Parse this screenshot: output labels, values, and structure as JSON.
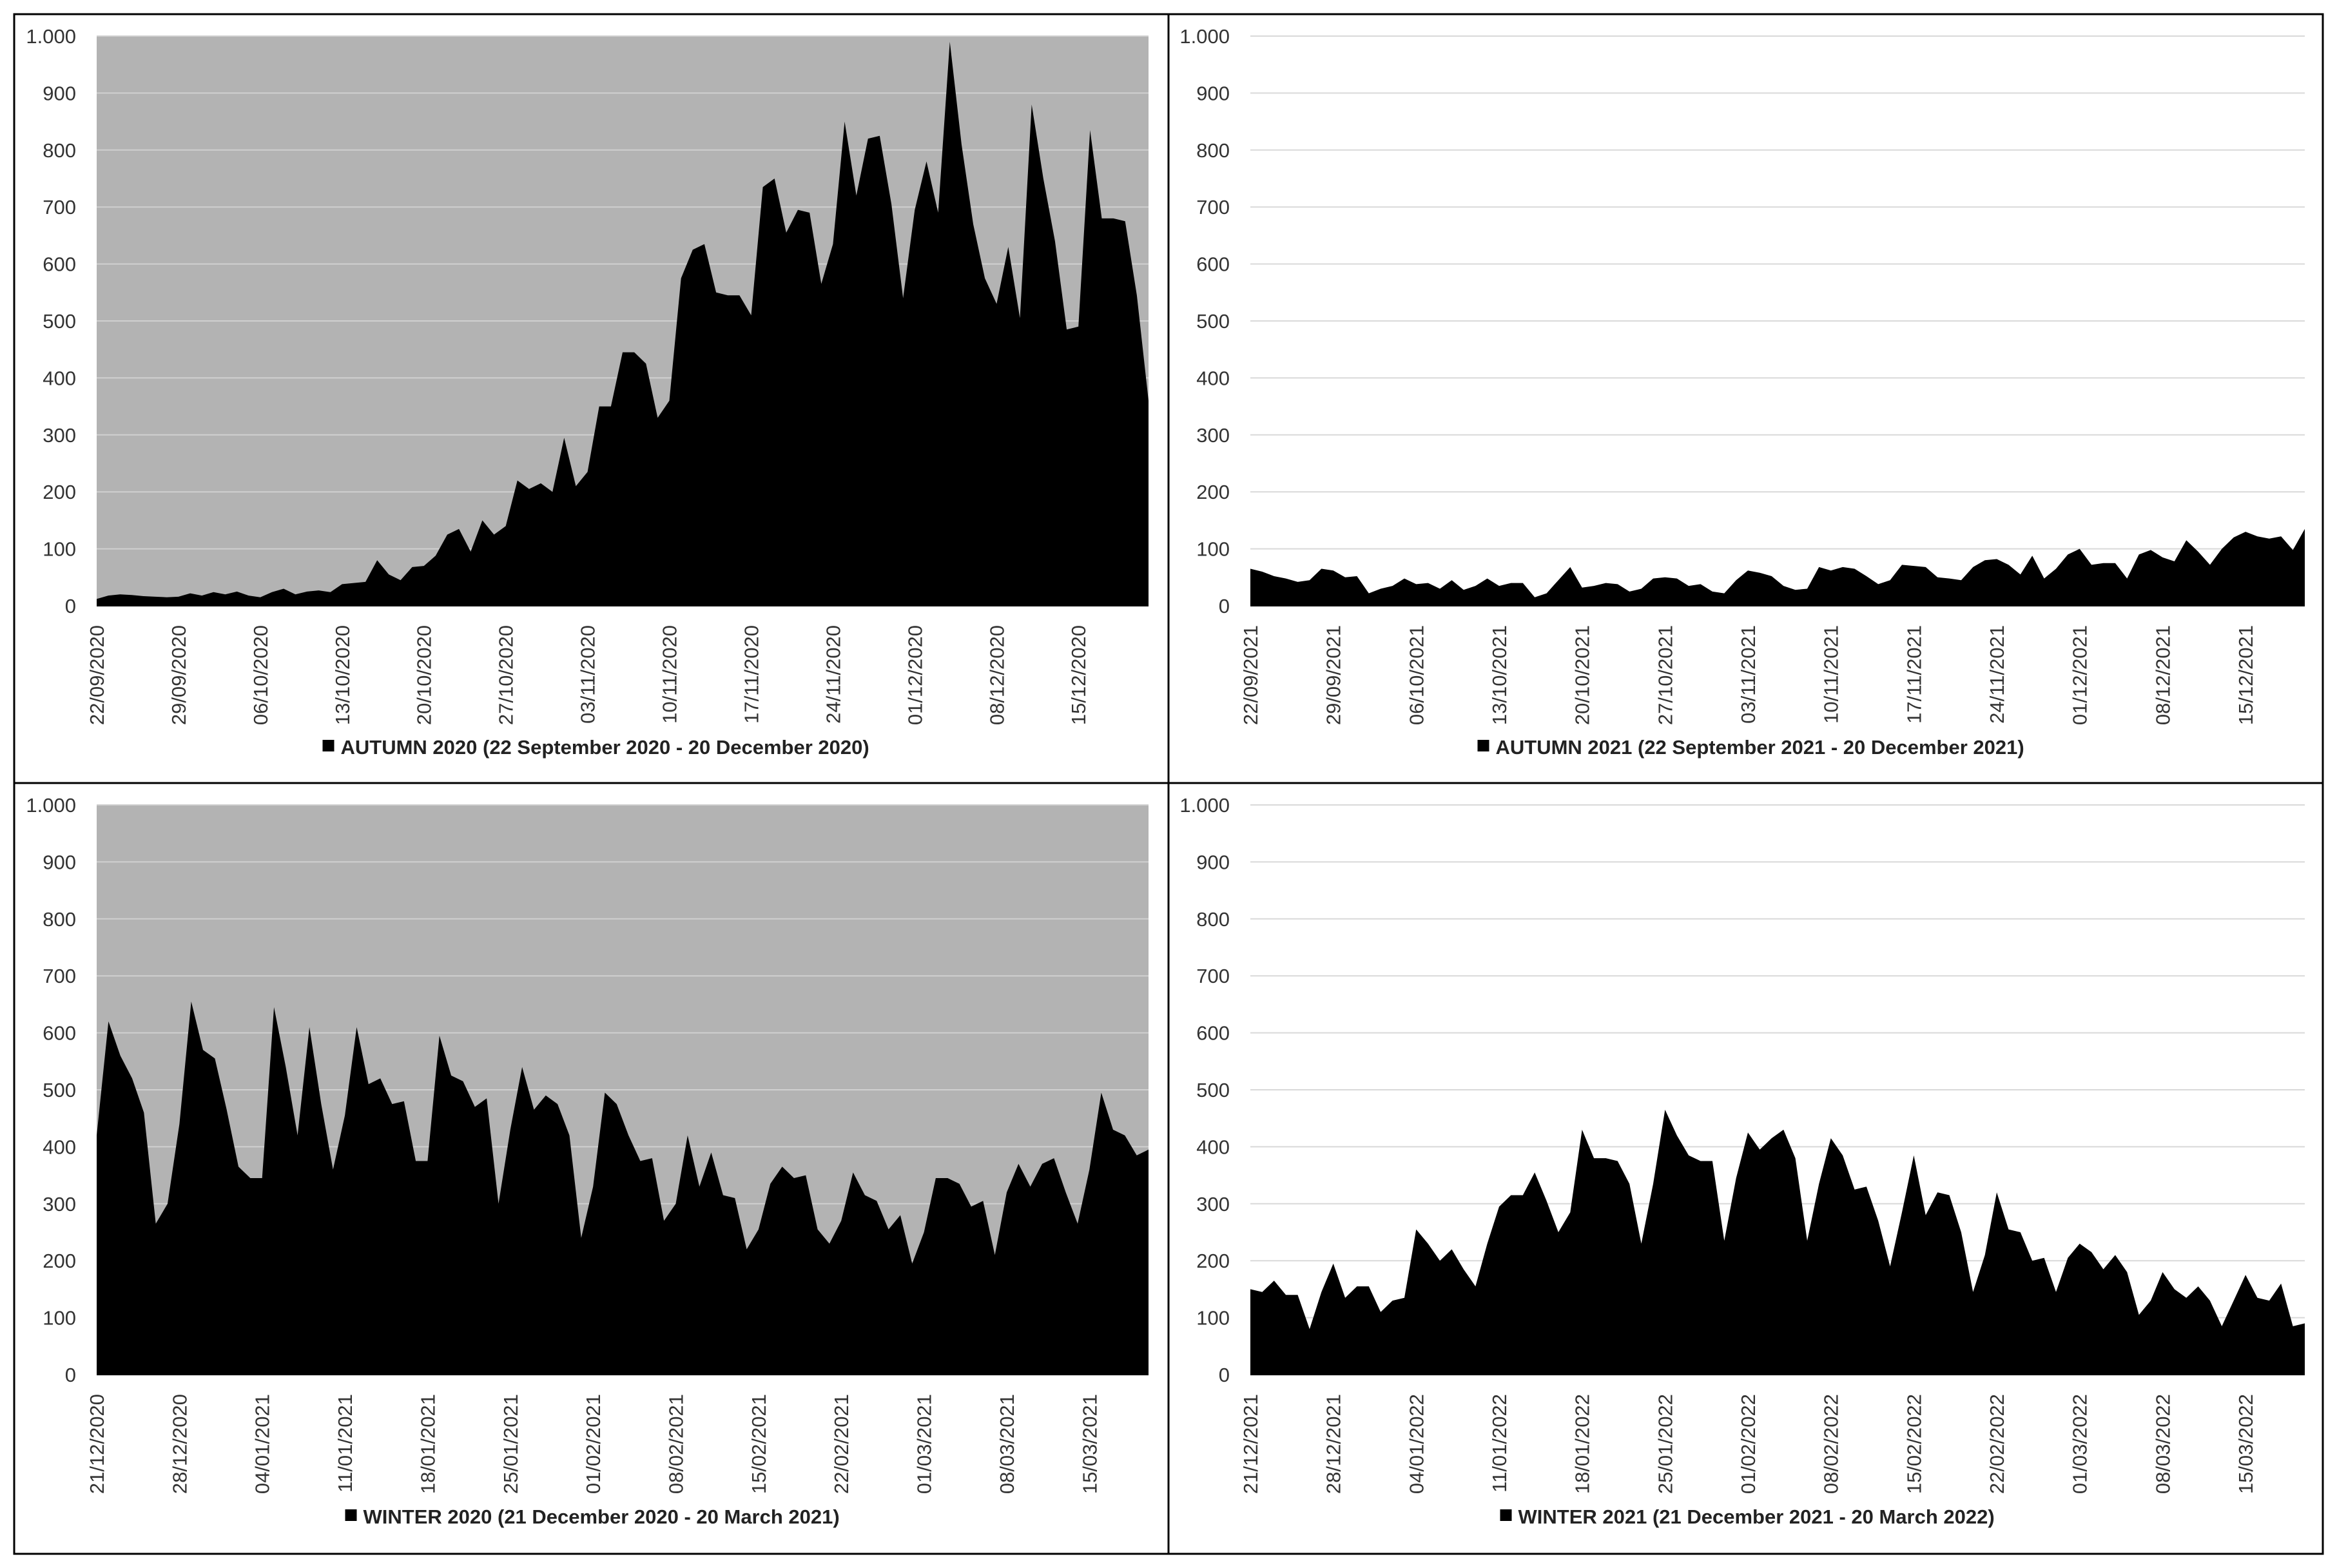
{
  "chart_data": [
    {
      "type": "area",
      "panel": "top-left",
      "series": [
        {
          "name": "AUTUMN 2020 (22 September 2020 - 20 December 2020)",
          "color": "#000000"
        }
      ],
      "legend_label": "AUTUMN 2020 (22 September 2020 - 20 December 2020)",
      "background": "#b3b3b3",
      "gridline_color": "#d0d0d0",
      "ylim": [
        0,
        1000
      ],
      "yticks": [
        0,
        100,
        200,
        300,
        400,
        500,
        600,
        700,
        800,
        900,
        1000
      ],
      "ytick_labels": [
        "0",
        "100",
        "200",
        "300",
        "400",
        "500",
        "600",
        "700",
        "800",
        "900",
        "1.000"
      ],
      "xtick_labels": [
        "22/09/2020",
        "29/09/2020",
        "06/10/2020",
        "13/10/2020",
        "20/10/2020",
        "27/10/2020",
        "03/11/2020",
        "10/11/2020",
        "17/11/2020",
        "24/11/2020",
        "01/12/2020",
        "08/12/2020",
        "15/12/2020"
      ],
      "legend_position": "bottom",
      "values": [
        12,
        18,
        20,
        19,
        17,
        16,
        15,
        16,
        22,
        18,
        24,
        20,
        25,
        18,
        15,
        24,
        30,
        20,
        25,
        27,
        24,
        38,
        40,
        42,
        80,
        55,
        45,
        68,
        70,
        88,
        125,
        135,
        95,
        150,
        125,
        140,
        220,
        205,
        215,
        200,
        295,
        210,
        235,
        350,
        350,
        445,
        445,
        425,
        330,
        360,
        575,
        625,
        635,
        550,
        545,
        545,
        510,
        735,
        750,
        655,
        695,
        690,
        565,
        635,
        850,
        720,
        820,
        825,
        705,
        540,
        695,
        780,
        690,
        990,
        810,
        670,
        575,
        530,
        630,
        505,
        880,
        750,
        640,
        485,
        490,
        835,
        680,
        680,
        675,
        545,
        360
      ]
    },
    {
      "type": "area",
      "panel": "top-right",
      "series": [
        {
          "name": "AUTUMN 2021 (22 September 2021 - 20 December 2021)",
          "color": "#000000"
        }
      ],
      "legend_label": "AUTUMN 2021 (22 September 2021 - 20 December 2021)",
      "background": "#ffffff",
      "gridline_color": "#d9d9d9",
      "ylim": [
        0,
        1000
      ],
      "yticks": [
        0,
        100,
        200,
        300,
        400,
        500,
        600,
        700,
        800,
        900,
        1000
      ],
      "ytick_labels": [
        "0",
        "100",
        "200",
        "300",
        "400",
        "500",
        "600",
        "700",
        "800",
        "900",
        "1.000"
      ],
      "xtick_labels": [
        "22/09/2021",
        "29/09/2021",
        "06/10/2021",
        "13/10/2021",
        "20/10/2021",
        "27/10/2021",
        "03/11/2021",
        "10/11/2021",
        "17/11/2021",
        "24/11/2021",
        "01/12/2021",
        "08/12/2021",
        "15/12/2021"
      ],
      "legend_position": "bottom",
      "values": [
        65,
        60,
        52,
        48,
        42,
        45,
        65,
        62,
        50,
        52,
        22,
        30,
        35,
        48,
        38,
        40,
        30,
        45,
        28,
        35,
        48,
        35,
        40,
        40,
        15,
        22,
        45,
        68,
        32,
        35,
        40,
        38,
        25,
        30,
        48,
        50,
        48,
        35,
        38,
        25,
        22,
        45,
        62,
        58,
        52,
        35,
        28,
        30,
        68,
        62,
        68,
        65,
        52,
        38,
        45,
        72,
        70,
        68,
        50,
        48,
        45,
        68,
        80,
        82,
        72,
        55,
        88,
        48,
        65,
        90,
        100,
        72,
        75,
        75,
        48,
        90,
        98,
        85,
        78,
        115,
        95,
        72,
        100,
        120,
        130,
        122,
        118,
        122,
        98,
        135
      ]
    },
    {
      "type": "area",
      "panel": "bottom-left",
      "series": [
        {
          "name": "WINTER 2020 (21 December 2020 - 20 March 2021)",
          "color": "#000000"
        }
      ],
      "legend_label": "WINTER 2020 (21 December 2020 - 20 March 2021)",
      "background": "#b3b3b3",
      "gridline_color": "#d0d0d0",
      "ylim": [
        0,
        1000
      ],
      "yticks": [
        0,
        100,
        200,
        300,
        400,
        500,
        600,
        700,
        800,
        900,
        1000
      ],
      "ytick_labels": [
        "0",
        "100",
        "200",
        "300",
        "400",
        "500",
        "600",
        "700",
        "800",
        "900",
        "1.000"
      ],
      "xtick_labels": [
        "21/12/2020",
        "28/12/2020",
        "04/01/2021",
        "11/01/2021",
        "18/01/2021",
        "25/01/2021",
        "01/02/2021",
        "08/02/2021",
        "15/02/2021",
        "22/02/2021",
        "01/03/2021",
        "08/03/2021",
        "15/03/2021"
      ],
      "legend_position": "bottom",
      "values": [
        420,
        620,
        560,
        520,
        460,
        265,
        300,
        440,
        655,
        570,
        555,
        465,
        365,
        345,
        345,
        645,
        540,
        420,
        610,
        475,
        360,
        455,
        610,
        510,
        520,
        475,
        480,
        375,
        375,
        595,
        525,
        515,
        470,
        485,
        300,
        430,
        540,
        465,
        490,
        475,
        420,
        240,
        330,
        495,
        475,
        420,
        375,
        380,
        270,
        300,
        420,
        330,
        390,
        315,
        310,
        220,
        255,
        335,
        365,
        345,
        350,
        255,
        230,
        270,
        355,
        315,
        305,
        255,
        280,
        195,
        250,
        345,
        345,
        335,
        295,
        305,
        210,
        320,
        370,
        330,
        370,
        380,
        320,
        265,
        360,
        495,
        430,
        420,
        385,
        395
      ]
    },
    {
      "type": "area",
      "panel": "bottom-right",
      "series": [
        {
          "name": "WINTER 2021 (21 December 2021 - 20 March 2022)",
          "color": "#000000"
        }
      ],
      "legend_label": "WINTER 2021 (21 December 2021 - 20 March 2022)",
      "background": "#ffffff",
      "gridline_color": "#d9d9d9",
      "ylim": [
        0,
        1000
      ],
      "yticks": [
        0,
        100,
        200,
        300,
        400,
        500,
        600,
        700,
        800,
        900,
        1000
      ],
      "ytick_labels": [
        "0",
        "100",
        "200",
        "300",
        "400",
        "500",
        "600",
        "700",
        "800",
        "900",
        "1.000"
      ],
      "xtick_labels": [
        "21/12/2021",
        "28/12/2021",
        "04/01/2022",
        "11/01/2022",
        "18/01/2022",
        "25/01/2022",
        "01/02/2022",
        "08/02/2022",
        "15/02/2022",
        "22/02/2022",
        "01/03/2022",
        "08/03/2022",
        "15/03/2022"
      ],
      "legend_position": "bottom",
      "values": [
        150,
        145,
        165,
        140,
        140,
        80,
        145,
        195,
        135,
        155,
        155,
        110,
        130,
        135,
        255,
        230,
        200,
        220,
        185,
        155,
        230,
        295,
        315,
        315,
        355,
        305,
        250,
        285,
        430,
        380,
        380,
        375,
        335,
        230,
        335,
        465,
        420,
        385,
        375,
        375,
        235,
        345,
        425,
        395,
        415,
        430,
        380,
        235,
        335,
        415,
        385,
        325,
        330,
        270,
        190,
        285,
        385,
        280,
        320,
        315,
        250,
        145,
        210,
        320,
        255,
        250,
        200,
        205,
        145,
        205,
        230,
        215,
        185,
        210,
        180,
        105,
        130,
        180,
        150,
        135,
        155,
        130,
        85,
        130,
        175,
        135,
        130,
        160,
        85,
        90
      ]
    }
  ]
}
